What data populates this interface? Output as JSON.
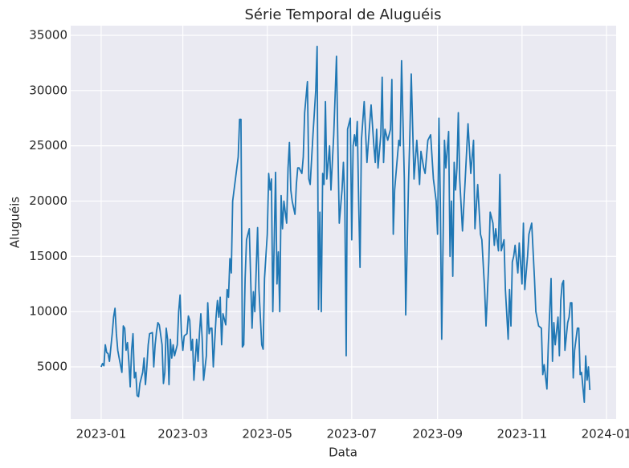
{
  "chart_data": {
    "type": "line",
    "title": "Série Temporal de Aluguéis",
    "x_label": "Data",
    "y_label": "Aluguéis",
    "color": "#1f77b4",
    "grid": true,
    "xlim": [
      -22,
      372
    ],
    "ylim": [
      280,
      35870
    ],
    "xticks": [
      {
        "value": 0,
        "label": "2023-01"
      },
      {
        "value": 59,
        "label": "2023-03"
      },
      {
        "value": 120,
        "label": "2023-05"
      },
      {
        "value": 181,
        "label": "2023-07"
      },
      {
        "value": 243,
        "label": "2023-09"
      },
      {
        "value": 304,
        "label": "2023-11"
      },
      {
        "value": 365,
        "label": "2024-01"
      }
    ],
    "yticks": [
      5000,
      10000,
      15000,
      20000,
      25000,
      30000,
      35000
    ],
    "x": [
      0,
      1,
      2,
      3,
      4,
      5,
      6,
      8,
      9,
      10,
      11,
      12,
      13,
      15,
      16,
      17,
      18,
      19,
      20,
      21,
      22,
      23,
      24,
      25,
      26,
      27,
      28,
      30,
      31,
      32,
      33,
      34,
      35,
      37,
      38,
      39,
      40,
      41,
      42,
      44,
      45,
      46,
      47,
      48,
      49,
      50,
      51,
      52,
      53,
      55,
      56,
      57,
      58,
      59,
      60,
      62,
      63,
      64,
      65,
      66,
      67,
      69,
      70,
      71,
      72,
      73,
      74,
      76,
      77,
      78,
      79,
      80,
      81,
      83,
      84,
      85,
      86,
      87,
      88,
      90,
      91,
      92,
      93,
      94,
      95,
      97,
      98,
      99,
      100,
      101,
      102,
      103,
      104,
      105,
      107,
      109,
      110,
      111,
      113,
      114,
      116,
      117,
      118,
      120,
      121,
      122,
      123,
      124,
      126,
      127,
      128,
      129,
      130,
      131,
      132,
      134,
      135,
      136,
      137,
      138,
      140,
      141,
      142,
      143,
      145,
      146,
      147,
      149,
      150,
      151,
      153,
      155,
      156,
      157,
      158,
      159,
      160,
      161,
      162,
      163,
      165,
      166,
      168,
      170,
      171,
      172,
      174,
      175,
      176,
      177,
      178,
      180,
      181,
      182,
      183,
      184,
      185,
      186,
      187,
      188,
      190,
      192,
      194,
      195,
      197,
      198,
      199,
      200,
      202,
      203,
      204,
      205,
      207,
      209,
      210,
      211,
      212,
      215,
      216,
      217,
      219,
      220,
      222,
      223,
      224,
      226,
      228,
      230,
      231,
      233,
      234,
      236,
      238,
      239,
      240,
      242,
      243,
      244,
      245,
      246,
      248,
      249,
      251,
      252,
      253,
      254,
      255,
      256,
      257,
      258,
      259,
      261,
      263,
      265,
      267,
      269,
      270,
      272,
      274,
      275,
      277,
      278,
      280,
      281,
      283,
      284,
      285,
      287,
      288,
      289,
      291,
      292,
      294,
      295,
      296,
      297,
      298,
      299,
      301,
      302,
      304,
      305,
      306,
      308,
      309,
      311,
      313,
      314,
      316,
      318,
      319,
      320,
      322,
      323,
      324,
      325,
      326,
      327,
      328,
      330,
      331,
      332,
      333,
      334,
      335,
      337,
      338,
      339,
      340,
      341,
      342,
      344,
      345,
      346,
      347,
      349,
      350,
      351,
      352,
      353
    ],
    "values": [
      5000,
      5300,
      5100,
      7000,
      6300,
      6200,
      5500,
      8000,
      9500,
      10300,
      8000,
      6500,
      5800,
      4500,
      8700,
      8500,
      6500,
      7200,
      5500,
      3200,
      6500,
      8000,
      4000,
      4500,
      2400,
      2300,
      3500,
      4500,
      5800,
      3400,
      5000,
      7000,
      8000,
      8100,
      5000,
      7000,
      8200,
      9000,
      8800,
      7000,
      3500,
      4500,
      8500,
      7500,
      3400,
      7500,
      5800,
      7000,
      6000,
      7000,
      10000,
      11500,
      8000,
      6500,
      7800,
      8000,
      9600,
      9200,
      6500,
      7500,
      3800,
      7500,
      5500,
      8000,
      9800,
      7500,
      3800,
      6000,
      10800,
      8000,
      8500,
      8500,
      5000,
      9500,
      11000,
      9500,
      11300,
      7000,
      9800,
      8800,
      12000,
      11300,
      14800,
      13500,
      20000,
      22000,
      23000,
      24000,
      27400,
      27400,
      6800,
      7000,
      13000,
      16500,
      17500,
      8500,
      11800,
      10000,
      17600,
      12000,
      7000,
      6600,
      13000,
      17000,
      22500,
      21000,
      22000,
      10000,
      22600,
      12500,
      15400,
      10000,
      20500,
      17500,
      20000,
      18000,
      23000,
      25300,
      21000,
      20000,
      18800,
      21500,
      23000,
      23000,
      22500,
      24000,
      28000,
      30800,
      22000,
      21500,
      26000,
      30000,
      34000,
      10200,
      19000,
      10000,
      22500,
      21500,
      29000,
      22000,
      25000,
      21000,
      26000,
      33100,
      25000,
      18000,
      21000,
      23500,
      20000,
      6000,
      26500,
      27500,
      16500,
      25000,
      26000,
      25000,
      27200,
      20000,
      14000,
      25500,
      29000,
      23500,
      27000,
      28700,
      25000,
      23500,
      26500,
      23000,
      26000,
      31200,
      23500,
      26500,
      25500,
      26500,
      31000,
      17000,
      21000,
      25500,
      25000,
      32700,
      22000,
      9700,
      21500,
      26000,
      31500,
      22000,
      25500,
      21500,
      24500,
      23000,
      22500,
      25500,
      26000,
      24000,
      22000,
      20000,
      17000,
      27500,
      20000,
      7500,
      25500,
      23000,
      26300,
      15000,
      20000,
      13200,
      23500,
      21000,
      23000,
      28000,
      22000,
      17300,
      22000,
      27000,
      22500,
      25500,
      17500,
      21500,
      17000,
      16500,
      12000,
      8700,
      14500,
      19000,
      18000,
      16000,
      17500,
      15500,
      22400,
      15500,
      16500,
      12000,
      7500,
      12000,
      8700,
      14500,
      15000,
      16000,
      13500,
      16200,
      12500,
      18000,
      12000,
      15000,
      17000,
      18000,
      13000,
      10000,
      8700,
      8500,
      4300,
      5200,
      3000,
      7000,
      10000,
      13000,
      5500,
      9000,
      7000,
      9500,
      6000,
      11000,
      12500,
      12800,
      6500,
      9000,
      9500,
      10800,
      10800,
      4000,
      6500,
      8500,
      8500,
      4300,
      4500,
      1800,
      6000,
      3800,
      5000,
      2900
    ]
  }
}
